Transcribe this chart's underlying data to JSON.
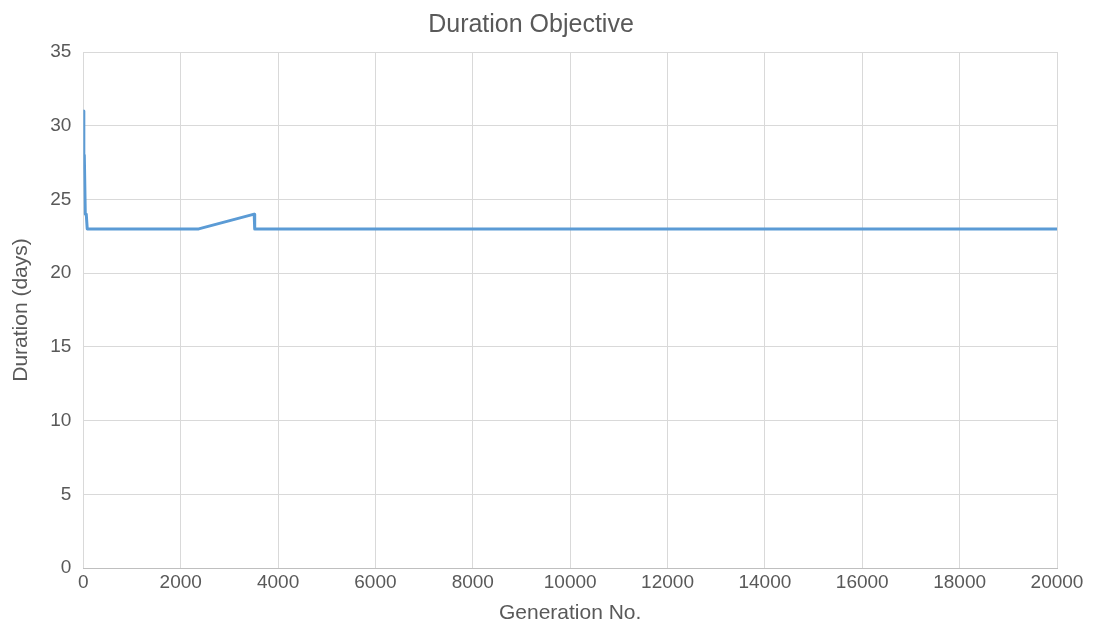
{
  "chart_data": {
    "type": "line",
    "title": "Duration Objective",
    "xlabel": "Generation No.",
    "ylabel": "Duration (days)",
    "xlim": [
      0,
      20000
    ],
    "xticks": [
      0,
      2000,
      4000,
      6000,
      8000,
      10000,
      12000,
      14000,
      16000,
      18000,
      20000
    ],
    "ylim": [
      0,
      35
    ],
    "yticks": [
      0,
      5,
      10,
      15,
      20,
      25,
      30,
      35
    ],
    "grid": true,
    "legend": false,
    "marker": "none",
    "line_style": "solid",
    "series": [
      {
        "color": "#5b9bd5",
        "x": [
          0,
          10,
          20,
          40,
          60,
          80,
          2370,
          3510,
          3520,
          20000
        ],
        "values": [
          31,
          28,
          28,
          24,
          24,
          23,
          23,
          24,
          23,
          23
        ]
      }
    ]
  }
}
